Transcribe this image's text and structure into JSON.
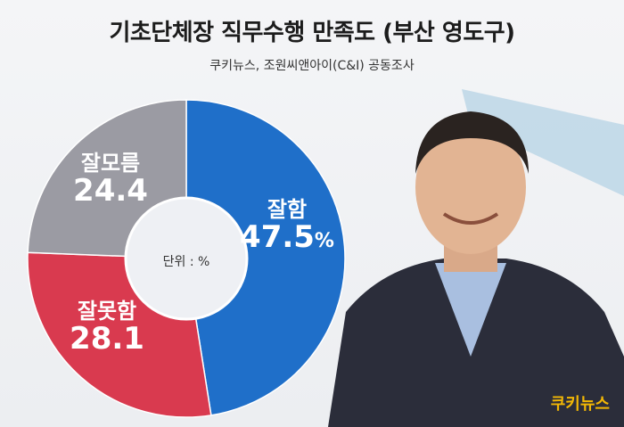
{
  "header": {
    "title": "기초단체장 직무수행 만족도 (부산 영도구)",
    "subtitle": "쿠키뉴스, 조원씨앤아이(C&I) 공동조사"
  },
  "chart_data": {
    "type": "pie",
    "title": "기초단체장 직무수행 만족도 (부산 영도구)",
    "unit_note": "단위 : %",
    "slices": [
      {
        "name": "잘함",
        "value": 47.5,
        "value_text": "47.5",
        "suffix": "%",
        "color": "#1f6fc9"
      },
      {
        "name": "잘못함",
        "value": 28.1,
        "value_text": "28.1",
        "suffix": "",
        "color": "#d93a4f"
      },
      {
        "name": "잘모름",
        "value": 24.4,
        "value_text": "24.4",
        "suffix": "",
        "color": "#9b9ba3"
      }
    ]
  },
  "brand": {
    "logo_text": "쿠키뉴스",
    "logo_color": "#f2b705"
  },
  "colors": {
    "background": "#eef0f3",
    "center": "#eef0f4"
  }
}
